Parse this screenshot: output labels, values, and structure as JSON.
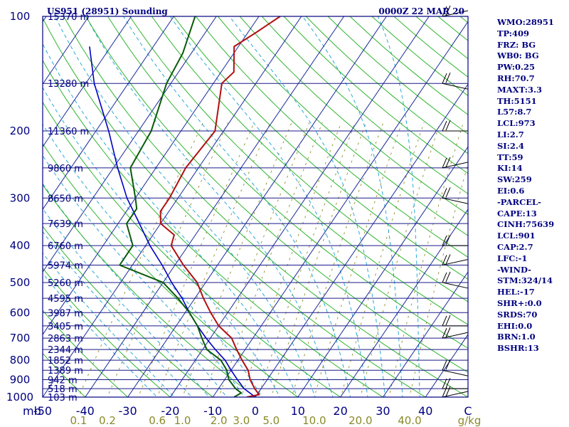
{
  "header": {
    "station": "US951 (28951) Sounding",
    "time": "0000Z 22 MAR 20"
  },
  "colors": {
    "axis": "#000080",
    "isobar": "#1a1a8a",
    "isotherm": "#1a2a9a",
    "dry_adiabat": "#2fb52f",
    "moist_adiabat": "#2aa8d8",
    "mixing_ratio": "#9a9a40",
    "temperature": "#b01010",
    "dewpoint": "#0a5a0a",
    "parcel": "#0000c0",
    "wind_barb": "#000000",
    "mix_label": "#8a8a2a"
  },
  "chart_data": {
    "type": "skew-t",
    "pressure_axis_label": "mb",
    "pressure_ticks": [
      100,
      200,
      300,
      400,
      500,
      600,
      700,
      800,
      900,
      1000
    ],
    "pressure_range": [
      1000,
      100
    ],
    "temperature_ticks": [
      -50,
      -40,
      -30,
      -20,
      -10,
      0,
      10,
      20,
      30,
      40
    ],
    "temperature_range": [
      -50,
      50
    ],
    "temperature_end_label": "C",
    "mixing_ratio_ticks": [
      "0.1",
      "0.2",
      "0.6",
      "1.0",
      "2.0",
      "3.0",
      "5.0",
      "10.0",
      "20.0",
      "40.0"
    ],
    "mixing_ratio_unit": "g/kg",
    "height_labels": [
      {
        "p": 100,
        "text": "15370 m"
      },
      {
        "p": 150,
        "text": "13280 m"
      },
      {
        "p": 200,
        "text": "11360 m"
      },
      {
        "p": 250,
        "text": "9860 m"
      },
      {
        "p": 300,
        "text": "8650 m"
      },
      {
        "p": 350,
        "text": "7639 m"
      },
      {
        "p": 400,
        "text": "6760 m"
      },
      {
        "p": 450,
        "text": "5974 m"
      },
      {
        "p": 500,
        "text": "5260 m"
      },
      {
        "p": 550,
        "text": "4595 m"
      },
      {
        "p": 600,
        "text": "3987 m"
      },
      {
        "p": 650,
        "text": "3405 m"
      },
      {
        "p": 700,
        "text": "2863 m"
      },
      {
        "p": 750,
        "text": "2344 m"
      },
      {
        "p": 800,
        "text": "1852 m"
      },
      {
        "p": 850,
        "text": "1389 m"
      },
      {
        "p": 900,
        "text": "942 m"
      },
      {
        "p": 950,
        "text": "518 m"
      },
      {
        "p": 1000,
        "text": "103 m"
      }
    ],
    "temperature_profile": [
      {
        "p": 1000,
        "t": -2
      },
      {
        "p": 985,
        "t": 0.5
      },
      {
        "p": 950,
        "t": -1.5
      },
      {
        "p": 900,
        "t": -4
      },
      {
        "p": 850,
        "t": -6
      },
      {
        "p": 800,
        "t": -9
      },
      {
        "p": 750,
        "t": -12
      },
      {
        "p": 700,
        "t": -15
      },
      {
        "p": 650,
        "t": -20
      },
      {
        "p": 600,
        "t": -24
      },
      {
        "p": 550,
        "t": -28
      },
      {
        "p": 500,
        "t": -32
      },
      {
        "p": 450,
        "t": -38
      },
      {
        "p": 400,
        "t": -44
      },
      {
        "p": 375,
        "t": -45
      },
      {
        "p": 350,
        "t": -50
      },
      {
        "p": 325,
        "t": -52
      },
      {
        "p": 300,
        "t": -52
      },
      {
        "p": 250,
        "t": -53
      },
      {
        "p": 200,
        "t": -52
      },
      {
        "p": 150,
        "t": -58
      },
      {
        "p": 140,
        "t": -57
      },
      {
        "p": 120,
        "t": -61
      },
      {
        "p": 110,
        "t": -58
      },
      {
        "p": 100,
        "t": -55
      }
    ],
    "dewpoint_profile": [
      {
        "p": 1000,
        "t": -5
      },
      {
        "p": 975,
        "t": -4
      },
      {
        "p": 950,
        "t": -6
      },
      {
        "p": 900,
        "t": -9
      },
      {
        "p": 850,
        "t": -11
      },
      {
        "p": 800,
        "t": -14
      },
      {
        "p": 750,
        "t": -19
      },
      {
        "p": 700,
        "t": -22
      },
      {
        "p": 650,
        "t": -25
      },
      {
        "p": 600,
        "t": -29
      },
      {
        "p": 550,
        "t": -34
      },
      {
        "p": 500,
        "t": -40
      },
      {
        "p": 450,
        "t": -53
      },
      {
        "p": 420,
        "t": -53
      },
      {
        "p": 400,
        "t": -53
      },
      {
        "p": 350,
        "t": -58
      },
      {
        "p": 320,
        "t": -58
      },
      {
        "p": 300,
        "t": -60
      },
      {
        "p": 250,
        "t": -66
      },
      {
        "p": 200,
        "t": -67
      },
      {
        "p": 150,
        "t": -71
      },
      {
        "p": 125,
        "t": -72
      },
      {
        "p": 100,
        "t": -75
      }
    ],
    "parcel_profile": [
      {
        "p": 1000,
        "t": 0
      },
      {
        "p": 950,
        "t": -4
      },
      {
        "p": 900,
        "t": -7
      },
      {
        "p": 850,
        "t": -10
      },
      {
        "p": 800,
        "t": -13
      },
      {
        "p": 750,
        "t": -17
      },
      {
        "p": 700,
        "t": -21
      },
      {
        "p": 650,
        "t": -25
      },
      {
        "p": 600,
        "t": -29
      },
      {
        "p": 550,
        "t": -33
      },
      {
        "p": 500,
        "t": -38
      },
      {
        "p": 450,
        "t": -43
      },
      {
        "p": 400,
        "t": -49
      },
      {
        "p": 350,
        "t": -55
      },
      {
        "p": 300,
        "t": -62
      },
      {
        "p": 250,
        "t": -69
      },
      {
        "p": 200,
        "t": -77
      },
      {
        "p": 150,
        "t": -88
      },
      {
        "p": 120,
        "t": -95
      }
    ],
    "wind_barbs": [
      {
        "p": 1000
      },
      {
        "p": 950
      },
      {
        "p": 850
      },
      {
        "p": 700
      },
      {
        "p": 650
      },
      {
        "p": 500
      },
      {
        "p": 450
      },
      {
        "p": 400
      },
      {
        "p": 300
      },
      {
        "p": 250
      },
      {
        "p": 200
      },
      {
        "p": 150
      },
      {
        "p": 100
      }
    ]
  },
  "indices": [
    "WMO:28951",
    "TP:409",
    "FRZ: BG",
    "WB0: BG",
    "PW:0.25",
    "RH:70.7",
    "MAXT:3.3",
    "TH:5151",
    "L57:8.7",
    "LCL:973",
    "LI:2.7",
    "SI:2.4",
    "TT:59",
    "KI:14",
    "SW:259",
    "EI:0.6",
    "-PARCEL-",
    "CAPE:13",
    "CINH:75639",
    "LCL:901",
    "CAP:2.7",
    "LFC:-1",
    "-WIND-",
    "STM:324/14",
    "HEL:-17",
    "SHR+:0.0",
    "SRDS:70",
    "EHI:0.0",
    "BRN:1.0",
    "BSHR:13"
  ]
}
